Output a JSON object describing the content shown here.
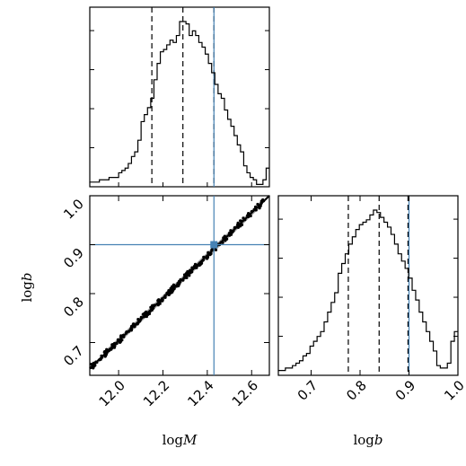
{
  "chart_data": [
    {
      "type": "histogram",
      "panel": "logM-marginal",
      "xlim": [
        11.87,
        12.68
      ],
      "quantiles": [
        12.15,
        12.29,
        12.43
      ],
      "truth": 12.43,
      "bin_counts": [
        2,
        2,
        2,
        3,
        3,
        3,
        4,
        4,
        4,
        6,
        7,
        8,
        10,
        13,
        15,
        20,
        28,
        31,
        34,
        38,
        46,
        53,
        58,
        59,
        61,
        63,
        62,
        65,
        71,
        71,
        70,
        65,
        67,
        65,
        62,
        60,
        57,
        53,
        49,
        44,
        40,
        38,
        33,
        29,
        26,
        22,
        18,
        15,
        9,
        6,
        4,
        3,
        1,
        1,
        3,
        8
      ]
    },
    {
      "type": "scatter",
      "panel": "logM-logb-joint",
      "xlabel": "logM",
      "ylabel": "logb",
      "xlim": [
        11.87,
        12.68
      ],
      "ylim": [
        0.633,
        1.0
      ],
      "x_ticks": [
        "12.0",
        "12.2",
        "12.4",
        "12.6"
      ],
      "y_ticks": [
        "0.7",
        "0.8",
        "0.9",
        "1.0"
      ],
      "relation": {
        "x0": 11.87,
        "y0": 0.647,
        "x1": 12.68,
        "y1": 1.0
      },
      "truth": {
        "x": 12.43,
        "y": 0.9
      }
    },
    {
      "type": "histogram",
      "panel": "logb-marginal",
      "xlabel": "logb",
      "xlim": [
        0.633,
        1.0
      ],
      "x_ticks": [
        "0.7",
        "0.8",
        "0.9",
        "1.0"
      ],
      "quantiles": [
        0.776,
        0.839,
        0.898
      ],
      "truth": 0.9,
      "bin_counts": [
        2,
        2,
        3,
        3,
        4,
        5,
        6,
        8,
        9,
        12,
        14,
        16,
        18,
        22,
        26,
        30,
        34,
        42,
        46,
        50,
        54,
        57,
        60,
        62,
        63,
        64,
        66,
        68,
        67,
        65,
        63,
        61,
        58,
        54,
        50,
        47,
        44,
        40,
        35,
        31,
        26,
        22,
        18,
        14,
        10,
        4,
        3,
        3,
        5,
        14,
        18
      ]
    }
  ]
}
